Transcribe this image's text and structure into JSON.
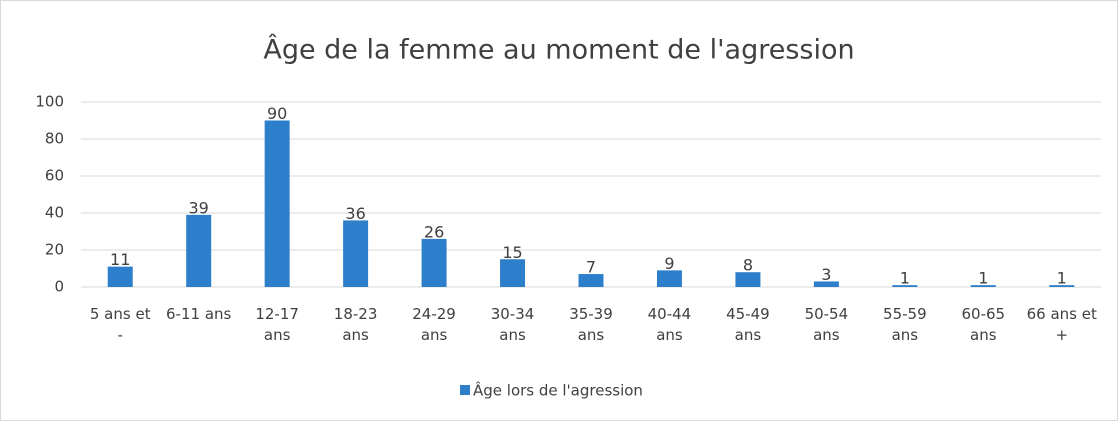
{
  "chart_data": {
    "type": "bar",
    "title": "Âge de la femme au moment de l'agression",
    "categories": [
      "5 ans et -",
      "6-11 ans",
      "12-17 ans",
      "18-23 ans",
      "24-29 ans",
      "30-34 ans",
      "35-39 ans",
      "40-44 ans",
      "45-49 ans",
      "50-54 ans",
      "55-59 ans",
      "60-65 ans",
      "66 ans et +"
    ],
    "series": [
      {
        "name": "Âge lors de l'agression",
        "color": "#2e7fcb",
        "values": [
          11,
          39,
          90,
          36,
          26,
          15,
          7,
          9,
          8,
          3,
          1,
          1,
          1
        ]
      }
    ],
    "ylim": [
      0,
      100
    ],
    "yticks": [
      0,
      20,
      40,
      60,
      80,
      100
    ],
    "grid": true,
    "legend": "bottom"
  }
}
